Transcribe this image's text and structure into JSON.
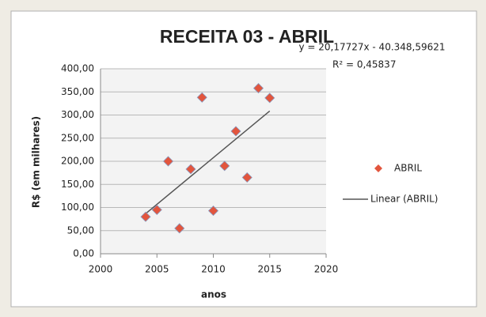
{
  "chart_data": {
    "type": "scatter",
    "title": "RECEITA 03 - ABRIL",
    "x_label": "anos",
    "y_label": "R$ (em milhares)",
    "series": [
      {
        "name": "ABRIL",
        "color": "#e2553d",
        "x": [
          2004,
          2005,
          2006,
          2007,
          2008,
          2009,
          2010,
          2011,
          2012,
          2013,
          2014,
          2015
        ],
        "values": [
          80,
          95,
          200,
          55,
          183,
          338,
          93,
          190,
          265,
          165,
          358,
          337
        ]
      }
    ],
    "trendline": {
      "name": "Linear (ABRIL)",
      "color": "#555555",
      "slope": 20.17727,
      "intercept": -40348.59621,
      "equation": "y = 20,17727x - 40.348,59621",
      "r2_label": "R² = 0,45837"
    },
    "xlim": [
      2000,
      2020
    ],
    "xticks": [
      2000,
      2005,
      2010,
      2015,
      2020
    ],
    "ylim": [
      0,
      400
    ],
    "yticks": [
      {
        "value": 0,
        "label": "0,00"
      },
      {
        "value": 50,
        "label": "50,00"
      },
      {
        "value": 100,
        "label": "100,00"
      },
      {
        "value": 150,
        "label": "150,00"
      },
      {
        "value": 200,
        "label": "200,00"
      },
      {
        "value": 250,
        "label": "250,00"
      },
      {
        "value": 300,
        "label": "300,00"
      },
      {
        "value": 350,
        "label": "350,00"
      },
      {
        "value": 400,
        "label": "400,00"
      }
    ],
    "grid": true,
    "legend": "right"
  }
}
